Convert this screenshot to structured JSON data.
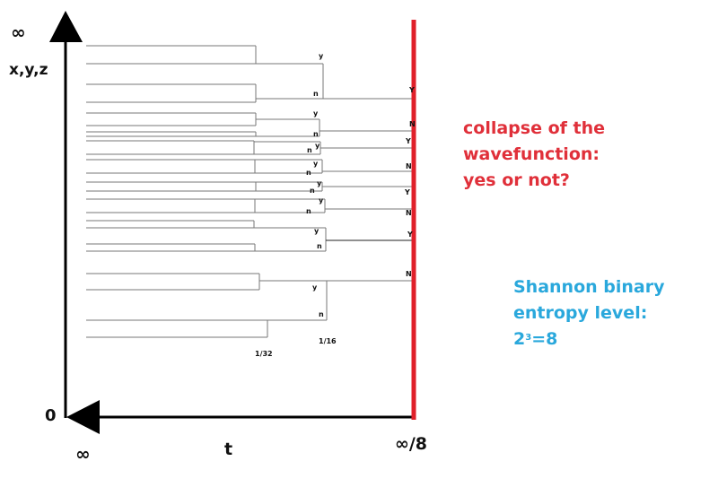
{
  "colors": {
    "axis": "#000000",
    "collapse_line": "#e0202a",
    "collapse_text": "#e0303a",
    "entropy_text": "#2aa8dc",
    "tree_lines": "#777777"
  },
  "axes": {
    "y_top_label": "∞",
    "y_axis_label": "x,y,z",
    "origin_label": "0",
    "x_left_label": "∞",
    "x_axis_label": "t",
    "x_right_label": "∞/8"
  },
  "tree_labels": {
    "a": [
      "y",
      "n",
      "Y"
    ],
    "b": [
      "y",
      "n",
      "N"
    ],
    "c": [
      "n",
      "y",
      "Y"
    ],
    "d": [
      "y",
      "n",
      "N"
    ],
    "e": [
      "y",
      "n",
      "Y"
    ],
    "f": [
      "y",
      "n",
      "N"
    ],
    "g": [
      "y",
      "n",
      "Y"
    ],
    "h": [
      "y",
      "n",
      "N"
    ]
  },
  "scale_labels": {
    "half_level": "1/16",
    "quarter_level": "1/32"
  },
  "collapse_note": {
    "line1": "collapse of the",
    "line2": "wavefunction:",
    "line3": "yes or not?"
  },
  "entropy_note": {
    "line1": "Shannon binary",
    "line2": "entropy level:",
    "base": "2",
    "exponent": "3",
    "result": "=8"
  }
}
